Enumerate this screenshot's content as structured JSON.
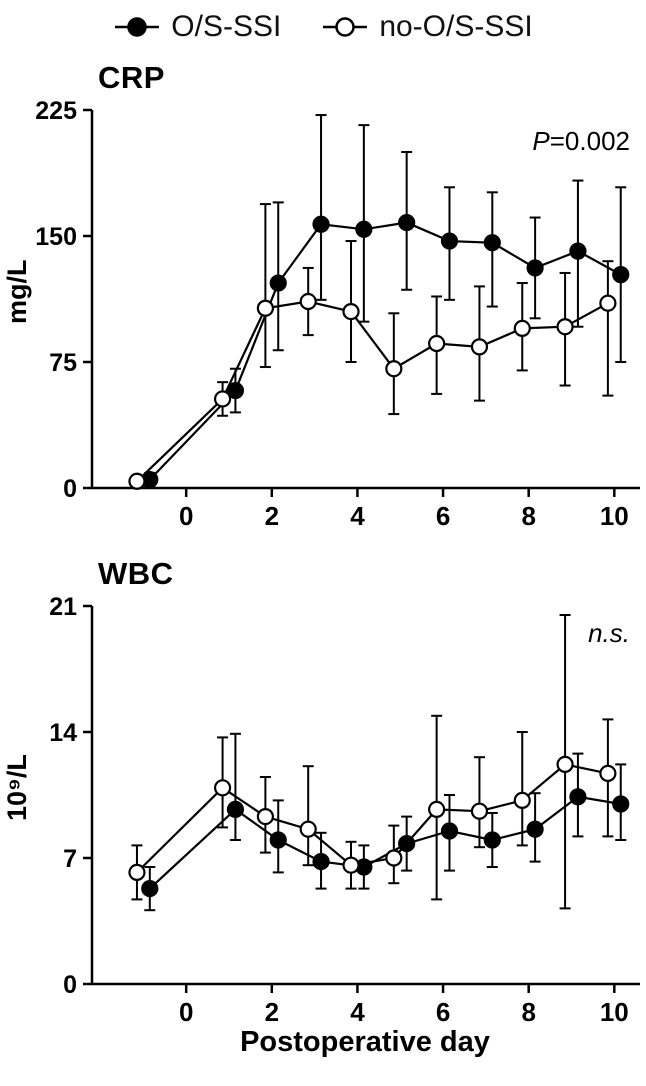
{
  "colors": {
    "foreground": "#000000",
    "background": "#ffffff"
  },
  "legend": {
    "items": [
      {
        "label": "O/S-SSI",
        "marker": "filled"
      },
      {
        "label": "no-O/S-SSI",
        "marker": "open"
      }
    ]
  },
  "xlabel": "Postoperative day",
  "chart_data": [
    {
      "type": "line",
      "title": "CRP",
      "ylabel": "mg/L",
      "annotation": {
        "italic": "P",
        "rest": "=0.002"
      },
      "x": [
        -1,
        1,
        2,
        3,
        4,
        5,
        6,
        7,
        8,
        9,
        10
      ],
      "xlim": [
        -2.2,
        10.6
      ],
      "ylim": [
        0,
        225
      ],
      "xticks": [
        0,
        2,
        4,
        6,
        8,
        10
      ],
      "yticks": [
        0,
        75,
        150,
        225
      ],
      "grid": false,
      "legend_position": "top",
      "series": [
        {
          "name": "O/S-SSI",
          "marker": "filled",
          "x_offset": 0.15,
          "values": [
            5,
            58,
            122,
            157,
            154,
            158,
            147,
            146,
            131,
            141,
            127
          ],
          "err_low": [
            4,
            13,
            40,
            45,
            55,
            40,
            35,
            38,
            30,
            45,
            52
          ],
          "err_high": [
            4,
            13,
            48,
            65,
            62,
            42,
            32,
            30,
            30,
            42,
            52
          ]
        },
        {
          "name": "no-O/S-SSI",
          "marker": "open",
          "x_offset": -0.15,
          "values": [
            4,
            53,
            107,
            111,
            105,
            71,
            86,
            84,
            95,
            96,
            110
          ],
          "err_low": [
            3,
            10,
            35,
            20,
            30,
            27,
            30,
            32,
            25,
            35,
            55
          ],
          "err_high": [
            3,
            10,
            62,
            20,
            42,
            33,
            28,
            36,
            27,
            32,
            25
          ]
        }
      ]
    },
    {
      "type": "line",
      "title": "WBC",
      "ylabel": "10⁹/L",
      "annotation": {
        "italic": "n.s.",
        "rest": ""
      },
      "x": [
        -1,
        1,
        2,
        3,
        4,
        5,
        6,
        7,
        8,
        9,
        10
      ],
      "xlim": [
        -2.2,
        10.6
      ],
      "ylim": [
        0,
        21
      ],
      "xticks": [
        0,
        2,
        4,
        6,
        8,
        10
      ],
      "yticks": [
        0,
        7,
        14,
        21
      ],
      "grid": false,
      "legend_position": "top",
      "series": [
        {
          "name": "O/S-SSI",
          "marker": "filled",
          "x_offset": 0.15,
          "values": [
            5.3,
            9.7,
            8.0,
            6.8,
            6.5,
            7.8,
            8.5,
            8.0,
            8.6,
            10.4,
            10.0
          ],
          "err_low": [
            1.2,
            1.7,
            1.8,
            1.5,
            1.2,
            1.5,
            2.2,
            1.5,
            1.8,
            2.2,
            2.0
          ],
          "err_high": [
            1.2,
            4.2,
            2.2,
            1.6,
            1.2,
            1.5,
            2.0,
            1.5,
            2.0,
            2.4,
            2.2
          ]
        },
        {
          "name": "no-O/S-SSI",
          "marker": "open",
          "x_offset": -0.15,
          "values": [
            6.2,
            10.9,
            9.3,
            8.6,
            6.6,
            7.0,
            9.7,
            9.6,
            10.2,
            12.2,
            11.7
          ],
          "err_low": [
            1.5,
            2.2,
            2.0,
            2.0,
            1.3,
            1.4,
            5.0,
            2.0,
            2.5,
            8.0,
            3.5
          ],
          "err_high": [
            1.5,
            2.8,
            2.2,
            3.5,
            1.3,
            1.8,
            5.2,
            3.0,
            3.8,
            8.3,
            3.0
          ]
        }
      ]
    }
  ]
}
